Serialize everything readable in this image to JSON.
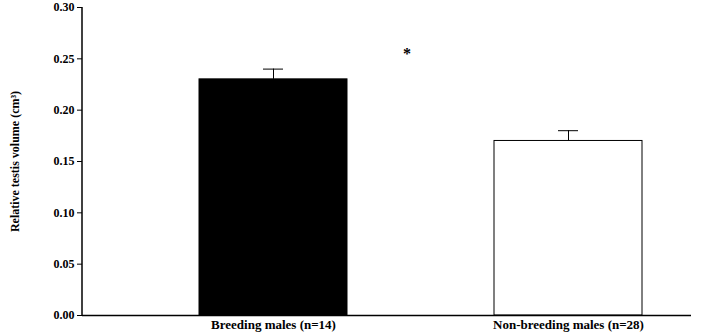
{
  "chart_data": {
    "type": "bar",
    "ylabel": "Relative testis volume (cm³)",
    "categories": [
      "Breeding males (n=14)",
      "Non-breeding males (n=28)"
    ],
    "values": [
      0.23,
      0.17
    ],
    "errors": [
      0.01,
      0.01
    ],
    "colors": [
      "#000000",
      "#ffffff"
    ],
    "ylim": [
      0,
      0.3
    ],
    "yticks": [
      {
        "value": 0,
        "label": "0.00"
      },
      {
        "value": 0.05,
        "label": "0.05"
      },
      {
        "value": 0.1,
        "label": "0.10"
      },
      {
        "value": 0.15,
        "label": "0.15"
      },
      {
        "value": 0.2,
        "label": "0.20"
      },
      {
        "value": 0.25,
        "label": "0.25"
      },
      {
        "value": 0.3,
        "label": "0.30"
      }
    ],
    "annotations": [
      {
        "text": "*"
      }
    ],
    "grid": false
  }
}
